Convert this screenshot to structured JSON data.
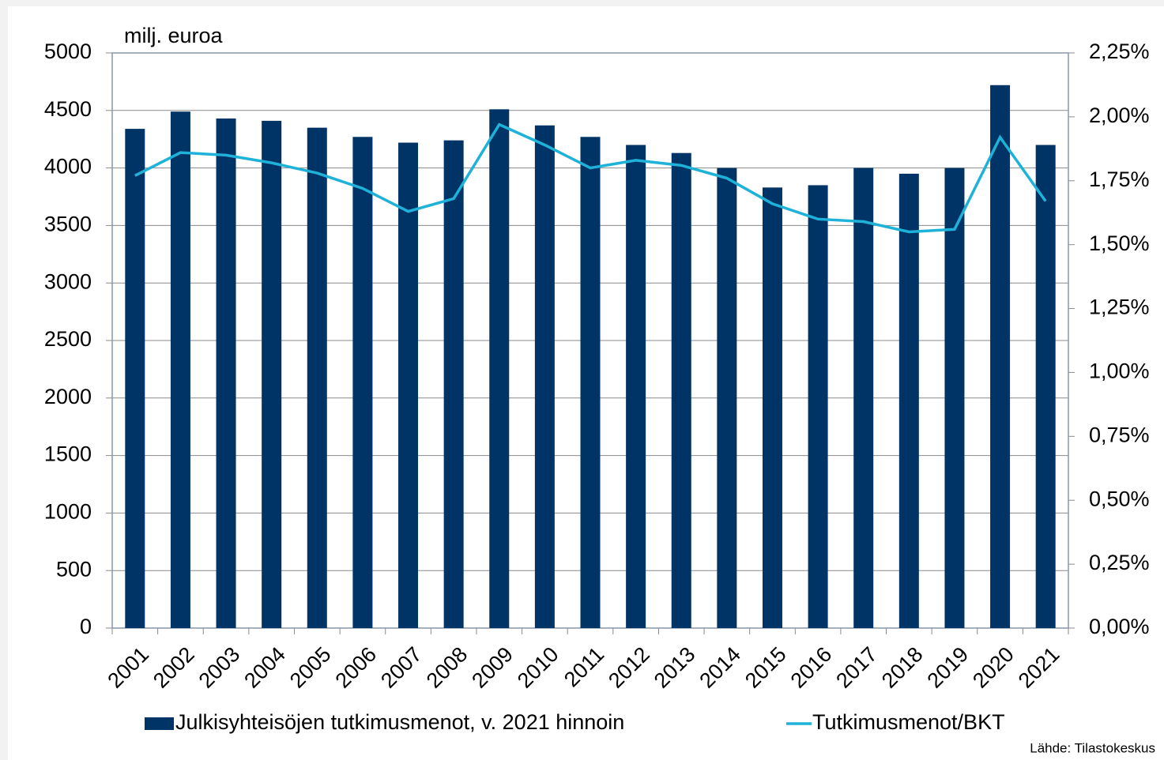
{
  "chart_data": {
    "type": "bar_line",
    "y_label": "milj. euroa",
    "source": "Lähde: Tilastokeskus",
    "categories": [
      "2001",
      "2002",
      "2003",
      "2004",
      "2005",
      "2006",
      "2007",
      "2008",
      "2009",
      "2010",
      "2011",
      "2012",
      "2013",
      "2014",
      "2015",
      "2016",
      "2017",
      "2018",
      "2019",
      "2020",
      "2021"
    ],
    "series": [
      {
        "name": "Julkisyhteisöjen tutkimusmenot, v. 2021 hinnoin",
        "type": "bar",
        "color": "#003366",
        "values": [
          4340,
          4490,
          4430,
          4410,
          4350,
          4270,
          4220,
          4240,
          4510,
          4370,
          4270,
          4200,
          4130,
          4000,
          3830,
          3850,
          4000,
          3950,
          4000,
          4720,
          4200
        ]
      },
      {
        "name": "Tutkimusmenot/BKT",
        "type": "line",
        "axis": "y2",
        "color": "#1fb2d8",
        "values": [
          1.77,
          1.86,
          1.85,
          1.82,
          1.78,
          1.72,
          1.63,
          1.68,
          1.97,
          1.89,
          1.8,
          1.83,
          1.81,
          1.76,
          1.66,
          1.6,
          1.59,
          1.55,
          1.56,
          1.92,
          1.67
        ]
      }
    ],
    "ylim": [
      0,
      5000
    ],
    "yticks": [
      0,
      500,
      1000,
      1500,
      2000,
      2500,
      3000,
      3500,
      4000,
      4500,
      5000
    ],
    "y2lim": [
      0,
      2.25
    ],
    "y2ticks": [
      {
        "value": 0,
        "label": "0,00%"
      },
      {
        "value": 0.25,
        "label": "0,25%"
      },
      {
        "value": 0.5,
        "label": "0,50%"
      },
      {
        "value": 0.75,
        "label": "0,75%"
      },
      {
        "value": 1,
        "label": "1,00%"
      },
      {
        "value": 1.25,
        "label": "1,25%"
      },
      {
        "value": 1.5,
        "label": "1,50%"
      },
      {
        "value": 1.75,
        "label": "1,75%"
      },
      {
        "value": 2,
        "label": "2,00%"
      },
      {
        "value": 2.25,
        "label": "2,25%"
      }
    ],
    "grid": true
  }
}
